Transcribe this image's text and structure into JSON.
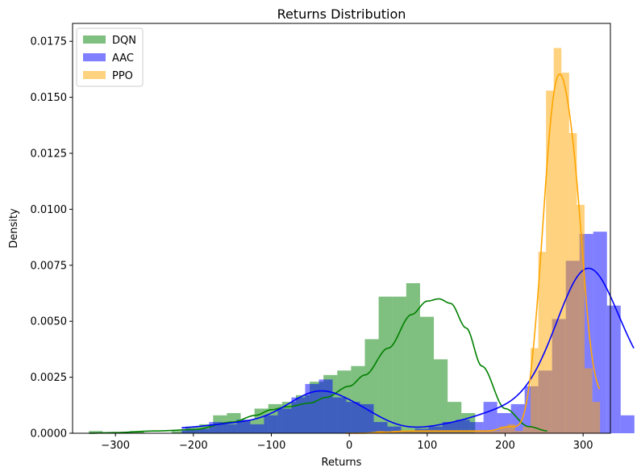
{
  "chart_data": {
    "type": "bar",
    "title": "Returns Distribution",
    "xlabel": "Returns",
    "ylabel": "Density",
    "xlim": [
      -355,
      335
    ],
    "ylim": [
      0,
      0.0183
    ],
    "xticks": [
      -300,
      -200,
      -100,
      0,
      100,
      200,
      300
    ],
    "xtick_labels": [
      "−300",
      "−200",
      "−100",
      "0",
      "100",
      "200",
      "300"
    ],
    "yticks": [
      0,
      0.0025,
      0.005,
      0.0075,
      0.01,
      0.0125,
      0.015,
      0.0175
    ],
    "ytick_labels": [
      "0.0000",
      "0.0025",
      "0.0050",
      "0.0075",
      "0.0100",
      "0.0125",
      "0.0150",
      "0.0175"
    ],
    "grid": false,
    "legend_position": "top-left",
    "series": [
      {
        "name": "DQN",
        "color": "#008000",
        "bin_start": -334,
        "bin_width": 17.7,
        "bar_opacity": 0.5,
        "density": [
          0.0001,
          0.0,
          0.0,
          0.0001,
          0.0,
          0.0,
          0.0001,
          0.0003,
          0.0004,
          0.0008,
          0.0009,
          0.0006,
          0.0011,
          0.0013,
          0.0014,
          0.0017,
          0.0023,
          0.0026,
          0.0028,
          0.003,
          0.0042,
          0.0061,
          0.0061,
          0.0067,
          0.0052,
          0.0033,
          0.0014,
          0.0009
        ],
        "kde_x": [
          -334,
          -300,
          -250,
          -200,
          -150,
          -120,
          -100,
          -80,
          -50,
          -30,
          0,
          20,
          50,
          80,
          100,
          115,
          130,
          150,
          170,
          200,
          230,
          255
        ],
        "kde_y": [
          0.0,
          3e-05,
          0.0001,
          0.00016,
          0.0005,
          0.0008,
          0.00105,
          0.00118,
          0.00135,
          0.0016,
          0.0021,
          0.0026,
          0.0038,
          0.0053,
          0.0059,
          0.006,
          0.0058,
          0.0047,
          0.003,
          0.0011,
          0.0003,
          0.0001
        ]
      },
      {
        "name": "AAC",
        "color": "#0000ff",
        "bin_start": -215,
        "bin_width": 17.6,
        "bar_opacity": 0.5,
        "density": [
          0.0002,
          0.0002,
          0.0005,
          0.0004,
          0.0006,
          0.0004,
          0.0008,
          0.0011,
          0.0016,
          0.0022,
          0.0024,
          0.0016,
          0.0014,
          0.0013,
          0.0005,
          0.0003,
          0.0001,
          0.0002,
          0.0003,
          0.0005,
          0.0006,
          0.0005,
          0.0014,
          0.0009,
          0.0013,
          0.0021,
          0.0028,
          0.0051,
          0.0077,
          0.0089,
          0.009,
          0.0057,
          0.0008
        ]
      },
      {
        "name": "PPO",
        "color": "#ffa500",
        "bin_start": -5,
        "bin_width": 9.9,
        "bar_opacity": 0.5,
        "density": [
          0.0,
          0.0,
          0.0,
          0.0,
          0.0001,
          0.0,
          0.0001,
          0.0001,
          0.0001,
          0.0001,
          0.0001,
          0.0001,
          0.0001,
          0.0001,
          0.0001,
          0.0001,
          0.0001,
          0.0001,
          0.0001,
          0.0001,
          0.0003,
          0.0004,
          0.0001,
          0.0003,
          0.0038,
          0.0081,
          0.0153,
          0.0172,
          0.0161,
          0.0134,
          0.0102,
          0.0029,
          0.0014
        ]
      }
    ]
  }
}
